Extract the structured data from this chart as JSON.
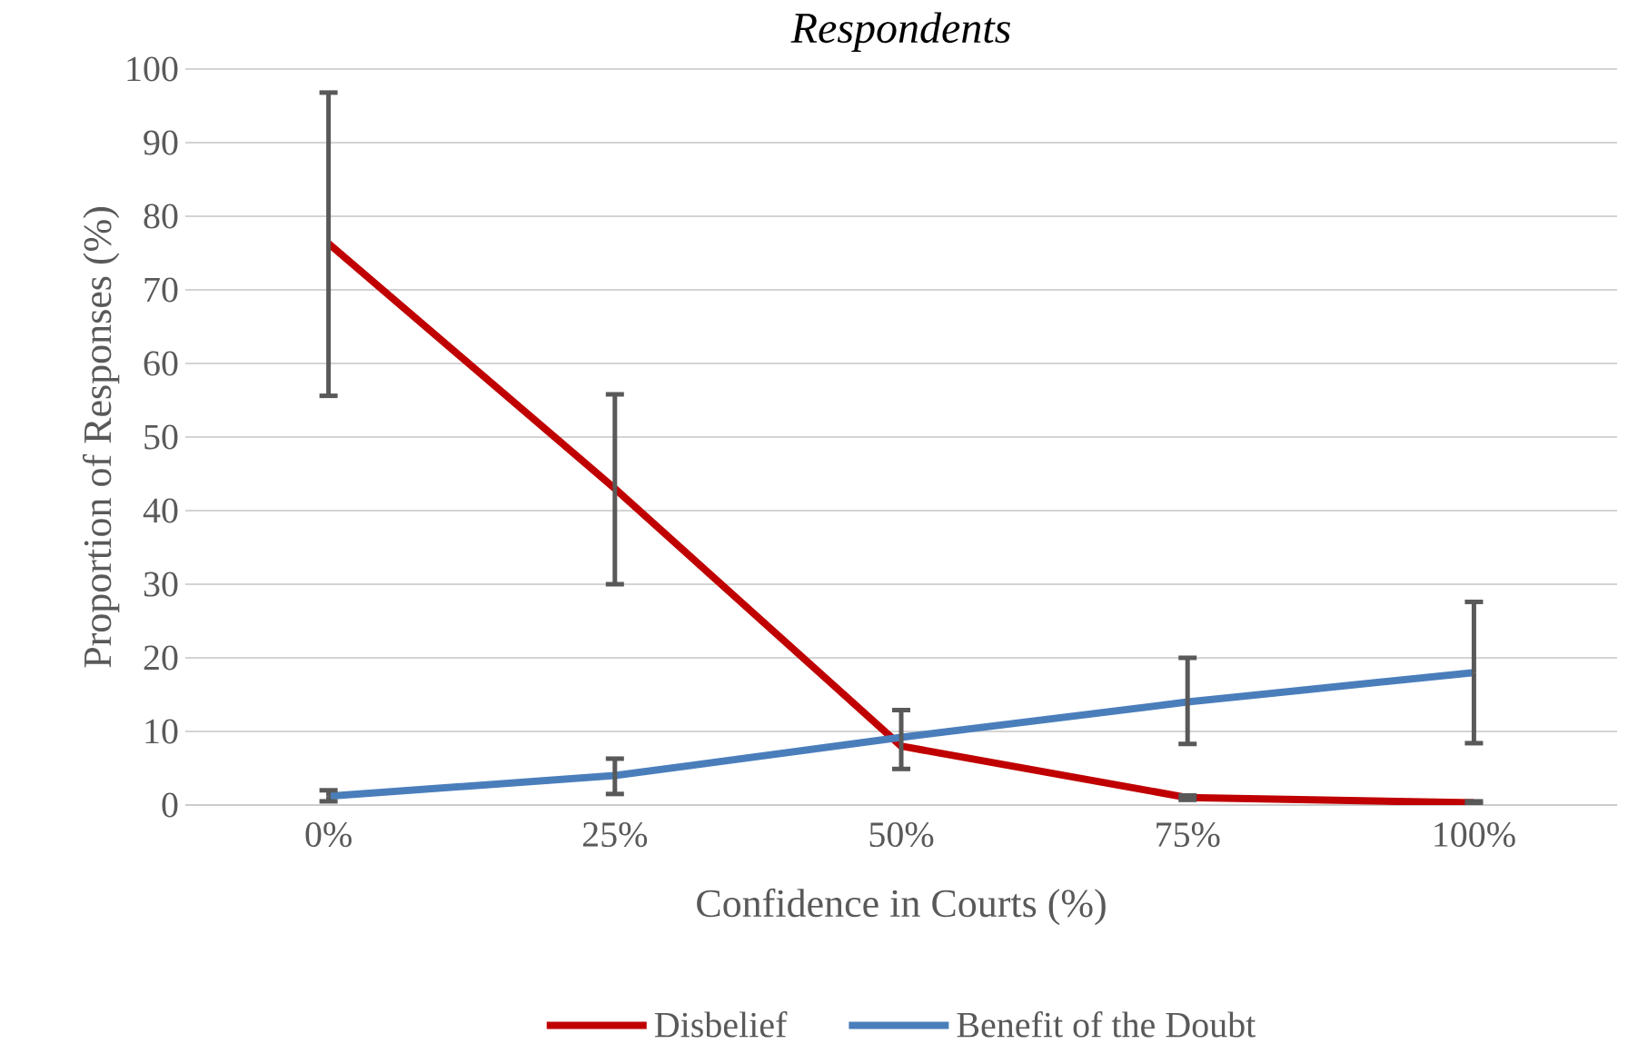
{
  "chart_data": {
    "type": "line",
    "title": "*Respondents*",
    "xlabel": "Confidence in Courts (%)",
    "ylabel": "Proportion of Responses (%)",
    "categories": [
      "0%",
      "25%",
      "50%",
      "75%",
      "100%"
    ],
    "series": [
      {
        "name": "Disbelief",
        "color": "#c00000",
        "values": [
          76.3,
          43,
          8,
          1,
          0.3
        ],
        "errors": [
          [
            55.6,
            96.8
          ],
          [
            30,
            55.8
          ],
          null,
          [
            0.7,
            1.3
          ],
          [
            0.1,
            0.5
          ]
        ]
      },
      {
        "name": "Benefit of the Doubt",
        "color": "#4a7ebb",
        "values": [
          1.2,
          4,
          9.2,
          14,
          18
        ],
        "errors": [
          [
            0.5,
            2
          ],
          [
            1.5,
            6.3
          ],
          [
            4.9,
            12.9
          ],
          [
            8.3,
            20
          ],
          [
            8.4,
            27.6
          ]
        ]
      }
    ],
    "ylim": [
      0,
      100
    ],
    "yticks": [
      0,
      10,
      20,
      30,
      40,
      50,
      60,
      70,
      80,
      90,
      100
    ],
    "grid": "y",
    "legend": "bottom",
    "marker": "none",
    "line_style": "solid"
  }
}
